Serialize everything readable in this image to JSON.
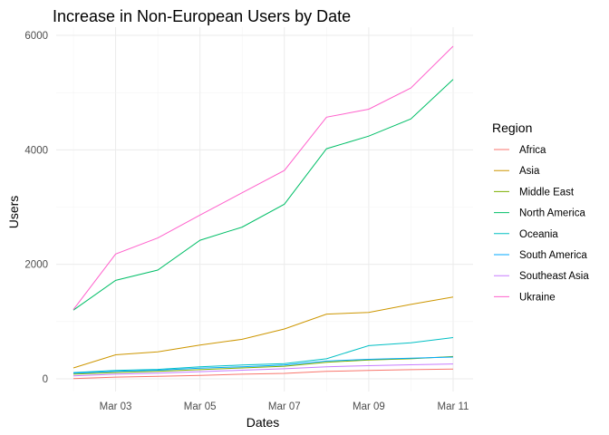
{
  "chart_data": {
    "type": "line",
    "title": "Increase in Non-European Users by Date",
    "xlabel": "Dates",
    "ylabel": "Users",
    "x": [
      "Mar 02",
      "Mar 03",
      "Mar 04",
      "Mar 05",
      "Mar 06",
      "Mar 07",
      "Mar 08",
      "Mar 09",
      "Mar 10",
      "Mar 11"
    ],
    "x_tick_labels": [
      "Mar 03",
      "Mar 05",
      "Mar 07",
      "Mar 09",
      "Mar 11"
    ],
    "y_ticks": [
      0,
      2000,
      4000,
      6000
    ],
    "ylim": [
      -250,
      6100
    ],
    "grid": true,
    "legend": {
      "title": "Region",
      "placement": "right"
    },
    "series": [
      {
        "name": "Africa",
        "color": "#F8766D",
        "values": [
          5,
          30,
          45,
          60,
          80,
          95,
          130,
          145,
          160,
          170
        ]
      },
      {
        "name": "Asia",
        "color": "#CD9600",
        "values": [
          190,
          420,
          470,
          590,
          690,
          870,
          1130,
          1160,
          1300,
          1430
        ]
      },
      {
        "name": "Middle East",
        "color": "#7CAE00",
        "values": [
          80,
          110,
          130,
          160,
          190,
          220,
          290,
          330,
          350,
          390
        ]
      },
      {
        "name": "North America",
        "color": "#00BE67",
        "values": [
          1200,
          1720,
          1900,
          2420,
          2650,
          3050,
          4020,
          4240,
          4540,
          5230
        ]
      },
      {
        "name": "Oceania",
        "color": "#00BFC4",
        "values": [
          110,
          145,
          165,
          210,
          240,
          265,
          350,
          580,
          630,
          720
        ]
      },
      {
        "name": "South America",
        "color": "#00A9FF",
        "values": [
          100,
          130,
          150,
          185,
          210,
          240,
          310,
          340,
          360,
          380
        ]
      },
      {
        "name": "Southeast Asia",
        "color": "#C77CFF",
        "values": [
          50,
          80,
          100,
          125,
          150,
          175,
          210,
          230,
          245,
          260
        ]
      },
      {
        "name": "Ukraine",
        "color": "#FF61CC",
        "values": [
          1210,
          2180,
          2460,
          2860,
          3250,
          3640,
          4570,
          4710,
          5080,
          5810
        ]
      }
    ]
  }
}
